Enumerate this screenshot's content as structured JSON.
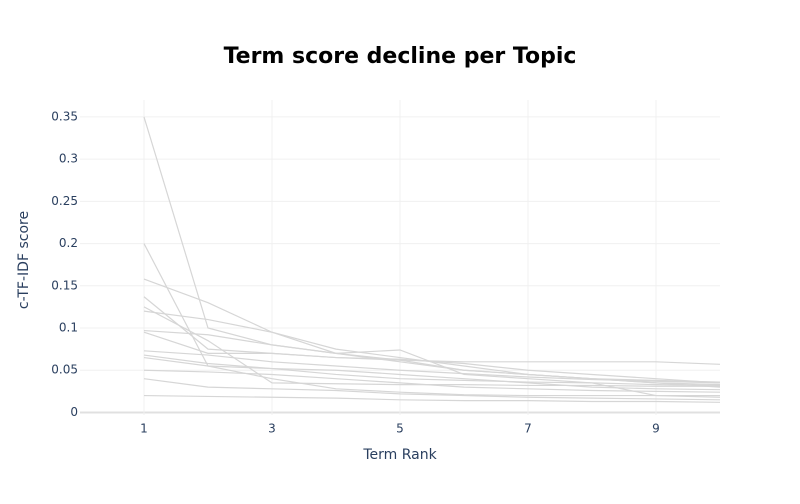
{
  "chart_data": {
    "type": "line",
    "title": "Term score decline per Topic",
    "x_label": "Term Rank",
    "y_label": "c-TF-IDF score",
    "x": [
      1,
      2,
      3,
      4,
      5,
      6,
      7,
      8,
      9,
      10
    ],
    "color": "#d6d6d6",
    "series": [
      {
        "values": [
          0.35,
          0.1,
          0.08,
          0.07,
          0.06,
          0.05,
          0.045,
          0.04,
          0.035,
          0.033
        ]
      },
      {
        "values": [
          0.2,
          0.055,
          0.052,
          0.05,
          0.045,
          0.04,
          0.035,
          0.03,
          0.028,
          0.027
        ]
      },
      {
        "values": [
          0.158,
          0.13,
          0.095,
          0.075,
          0.065,
          0.055,
          0.045,
          0.04,
          0.035,
          0.03
        ]
      },
      {
        "values": [
          0.137,
          0.075,
          0.07,
          0.065,
          0.062,
          0.06,
          0.06,
          0.06,
          0.06,
          0.057
        ]
      },
      {
        "values": [
          0.125,
          0.085,
          0.035,
          0.034,
          0.033,
          0.033,
          0.032,
          0.032,
          0.031,
          0.031
        ]
      },
      {
        "values": [
          0.12,
          0.11,
          0.095,
          0.07,
          0.074,
          0.045,
          0.04,
          0.035,
          0.02,
          0.018
        ]
      },
      {
        "values": [
          0.097,
          0.092,
          0.08,
          0.07,
          0.062,
          0.05,
          0.045,
          0.04,
          0.038,
          0.036
        ]
      },
      {
        "values": [
          0.095,
          0.07,
          0.07,
          0.065,
          0.063,
          0.058,
          0.05,
          0.045,
          0.04,
          0.035
        ]
      },
      {
        "values": [
          0.073,
          0.068,
          0.06,
          0.055,
          0.05,
          0.046,
          0.042,
          0.039,
          0.037,
          0.035
        ]
      },
      {
        "values": [
          0.068,
          0.058,
          0.052,
          0.045,
          0.04,
          0.038,
          0.036,
          0.035,
          0.033,
          0.032
        ]
      },
      {
        "values": [
          0.065,
          0.055,
          0.04,
          0.028,
          0.024,
          0.021,
          0.02,
          0.02,
          0.02,
          0.02
        ]
      },
      {
        "values": [
          0.05,
          0.048,
          0.045,
          0.04,
          0.035,
          0.03,
          0.028,
          0.026,
          0.025,
          0.024
        ]
      },
      {
        "values": [
          0.04,
          0.03,
          0.028,
          0.026,
          0.022,
          0.02,
          0.018,
          0.017,
          0.016,
          0.015
        ]
      },
      {
        "values": [
          0.02,
          0.019,
          0.018,
          0.017,
          0.015,
          0.014,
          0.014,
          0.013,
          0.013,
          0.012
        ]
      }
    ],
    "xlim": [
      0,
      10
    ],
    "xticks": [
      1,
      3,
      5,
      7,
      9
    ],
    "ylim": [
      -0.003,
      0.37
    ],
    "yticks": [
      0,
      0.05,
      0.1,
      0.15,
      0.2,
      0.25,
      0.3,
      0.35
    ],
    "grid": true
  }
}
